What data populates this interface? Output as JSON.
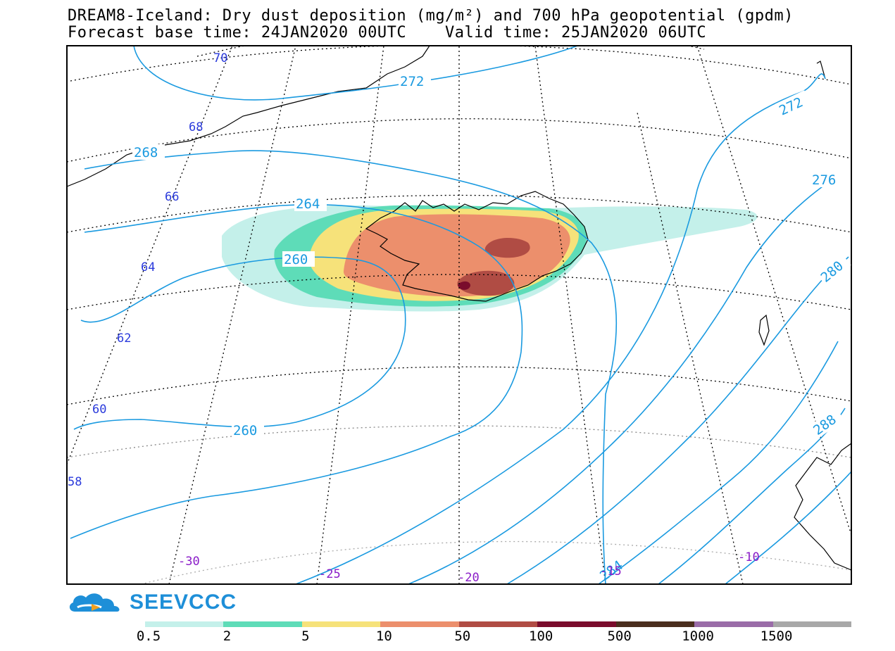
{
  "title": {
    "line1": "DREAM8-Iceland: Dry dust deposition (mg/m²) and 700 hPa geopotential (gpdm)",
    "line2": "Forecast base time: 24JAN2020 00UTC    Valid time: 25JAN2020 06UTC"
  },
  "logo": {
    "name": "SEEVCCC",
    "icon": "cloud-arrow-logo"
  },
  "legend": {
    "labels": [
      "0.5",
      "2",
      "5",
      "10",
      "50",
      "100",
      "500",
      "1000",
      "1500"
    ],
    "colors": [
      "#c4f0ea",
      "#5edcb8",
      "#f6e27a",
      "#ec8f6c",
      "#b04c44",
      "#7a0c2c",
      "#4a2e1e",
      "#9a6ca8",
      "#a8a8a8"
    ]
  },
  "map": {
    "contour_labels": [
      "272",
      "272",
      "268",
      "264",
      "260",
      "260",
      "276",
      "280",
      "288",
      "284"
    ],
    "latitude_labels": [
      "70",
      "68",
      "66",
      "64",
      "62",
      "60",
      "58"
    ],
    "longitude_labels": [
      "-30",
      "-25",
      "-20",
      "-15",
      "-10"
    ],
    "contour_color": "#1a9ae0",
    "lat_label_color": "#2a3adc",
    "lon_label_color": "#8a1cc8"
  }
}
